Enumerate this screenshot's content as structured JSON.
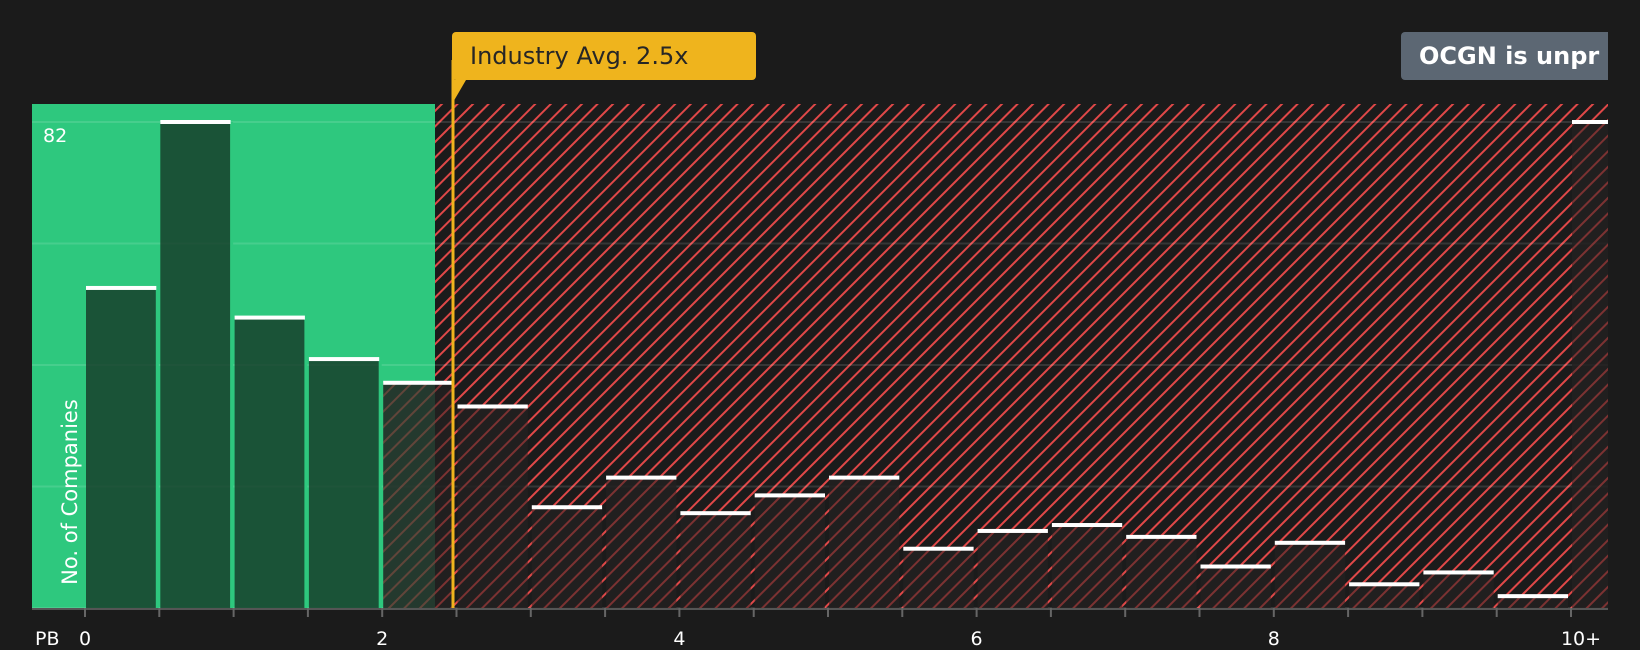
{
  "chart_data": {
    "type": "bar",
    "title": "",
    "xlabel": "PB",
    "ylabel": "No. of Companies",
    "ymax_label": "82",
    "ylim": [
      0,
      82
    ],
    "x_ticks": [
      "0",
      "2",
      "4",
      "6",
      "8",
      "10+"
    ],
    "categories": [
      "0-0.5",
      "0.5-1",
      "1-1.5",
      "1.5-2",
      "2-2.5",
      "2.5-3",
      "3-3.5",
      "3.5-4",
      "4-4.5",
      "4.5-5",
      "5-5.5",
      "5.5-6",
      "6-6.5",
      "6.5-7",
      "7-7.5",
      "7.5-8",
      "8-8.5",
      "8.5-9",
      "9-9.5",
      "9.5-10",
      "10+"
    ],
    "values": [
      54,
      82,
      49,
      42,
      38,
      34,
      17,
      22,
      16,
      19,
      22,
      10,
      13,
      14,
      12,
      7,
      11,
      4,
      6,
      2,
      82
    ],
    "industry_avg": 2.5,
    "fair_region_max": 2.4,
    "annotations": [
      "Industry Avg. 2.5x",
      "OCGN is unpr"
    ]
  },
  "callouts": {
    "industry": "Industry Avg. 2.5x",
    "verdict": "OCGN is unpr"
  },
  "axis": {
    "ylabel": "No. of Companies",
    "ymax": "82",
    "xlabel": "PB"
  },
  "colors": {
    "background": "#1b1b1b",
    "green": "#2ec87e",
    "red": "#e04848",
    "avg_line": "#efb41d",
    "verdict_bg": "#5c6773"
  }
}
